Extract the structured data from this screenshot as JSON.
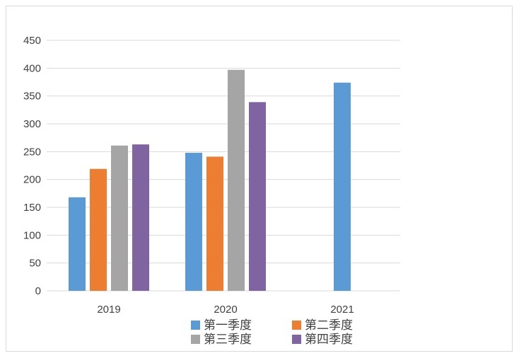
{
  "chart_data": {
    "type": "bar",
    "categories": [
      "2019",
      "2020",
      "2021"
    ],
    "series": [
      {
        "name": "第一季度",
        "color": "#5B9BD5",
        "values": [
          168,
          248,
          374
        ]
      },
      {
        "name": "第二季度",
        "color": "#ED7D31",
        "values": [
          219,
          241,
          null
        ]
      },
      {
        "name": "第三季度",
        "color": "#A5A5A5",
        "values": [
          261,
          397,
          null
        ]
      },
      {
        "name": "第四季度",
        "color": "#8064A2",
        "values": [
          263,
          339,
          null
        ]
      }
    ],
    "ylim": [
      0,
      450
    ],
    "yticks": [
      0,
      50,
      100,
      150,
      200,
      250,
      300,
      350,
      400,
      450
    ],
    "grid": true,
    "legend_position": "bottom",
    "gridline_color": "#d9d9d9"
  }
}
